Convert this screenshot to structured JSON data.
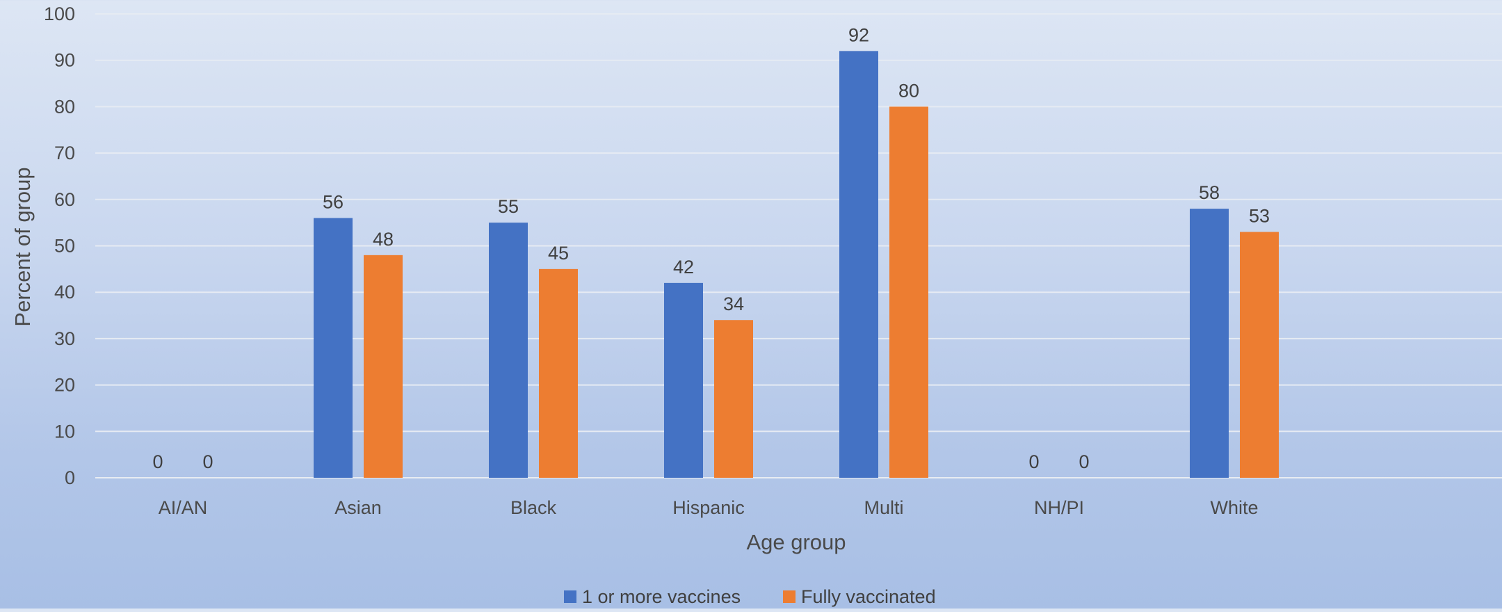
{
  "chart_data": {
    "type": "bar",
    "title": "",
    "xlabel": "Age group",
    "ylabel": "Percent of group",
    "categories": [
      "AI/AN",
      "Asian",
      "Black",
      "Hispanic",
      "Multi",
      "NH/PI",
      "White"
    ],
    "series": [
      {
        "name": "1 or more vaccines",
        "color": "#4472c4",
        "values": [
          0,
          56,
          55,
          42,
          92,
          0,
          58
        ]
      },
      {
        "name": "Fully vaccinated",
        "color": "#ed7d31",
        "values": [
          0,
          48,
          45,
          34,
          80,
          0,
          53
        ]
      }
    ],
    "ylim": [
      0,
      100
    ],
    "yticks": [
      0,
      10,
      20,
      30,
      40,
      50,
      60,
      70,
      80,
      90,
      100
    ],
    "grid": true,
    "legend_position": "bottom",
    "data_labels": true
  }
}
